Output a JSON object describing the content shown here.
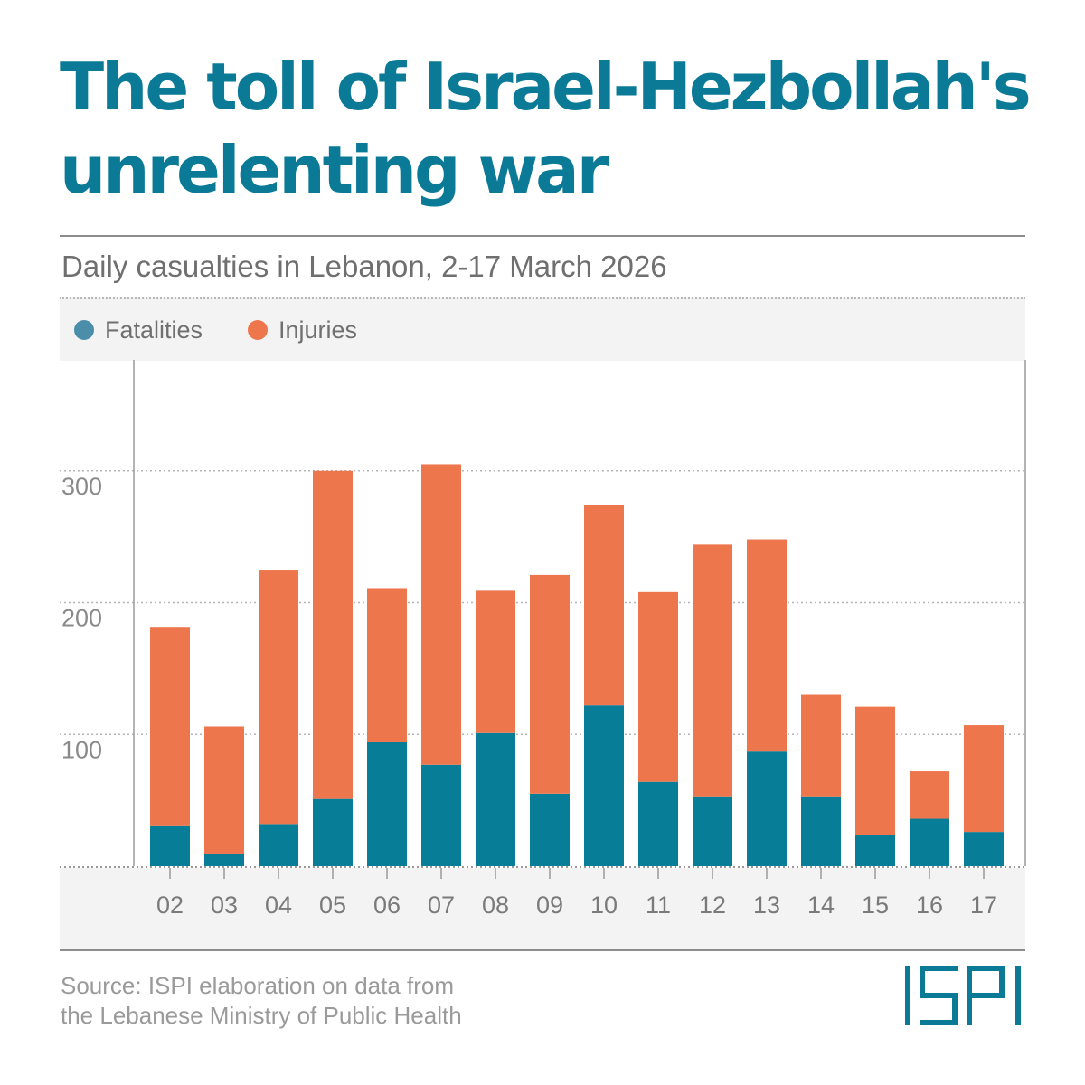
{
  "header": {
    "title": "The toll of Israel-Hezbollah's unrelenting war",
    "subtitle": "Daily casualties in Lebanon, 2-17 March 2026"
  },
  "legend": [
    {
      "label": "Fatalities",
      "color": "#4a8eaa"
    },
    {
      "label": "Injuries",
      "color": "#ee764c"
    }
  ],
  "chart_data": {
    "type": "bar",
    "stacked": true,
    "categories": [
      "02",
      "03",
      "04",
      "05",
      "06",
      "07",
      "08",
      "09",
      "10",
      "11",
      "12",
      "13",
      "14",
      "15",
      "16",
      "17"
    ],
    "series": [
      {
        "name": "Fatalities",
        "color": "#077d98",
        "values": [
          31,
          9,
          32,
          51,
          94,
          77,
          101,
          55,
          122,
          64,
          53,
          87,
          53,
          24,
          36,
          26
        ]
      },
      {
        "name": "Injuries",
        "color": "#ee764c",
        "values": [
          150,
          97,
          193,
          249,
          117,
          228,
          108,
          166,
          152,
          144,
          191,
          161,
          77,
          97,
          36,
          81
        ]
      }
    ],
    "ylim": [
      0,
      380
    ],
    "yticks": [
      100,
      200,
      300
    ],
    "grid": true,
    "legend_position": "top-left",
    "xlabel": "",
    "ylabel": ""
  },
  "footer": {
    "source_line1": "Source: ISPI elaboration on data from",
    "source_line2": "the Lebanese Ministry of Public Health",
    "logo_text": "ISPI",
    "logo_color": "#0a7a96"
  }
}
